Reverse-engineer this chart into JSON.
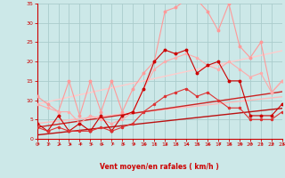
{
  "x": [
    0,
    1,
    2,
    3,
    4,
    5,
    6,
    7,
    8,
    9,
    10,
    11,
    12,
    13,
    14,
    15,
    16,
    17,
    18,
    19,
    20,
    21,
    22,
    23
  ],
  "series": [
    {
      "name": "gust_light",
      "color": "#ff9999",
      "linewidth": 0.8,
      "marker": "o",
      "markersize": 1.8,
      "values": [
        11,
        9,
        7,
        15,
        6,
        15,
        7,
        15,
        7,
        13,
        17,
        20,
        33,
        34,
        36,
        36,
        33,
        28,
        35,
        24,
        21,
        25,
        12,
        15
      ]
    },
    {
      "name": "mean_light",
      "color": "#ffaaaa",
      "linewidth": 0.8,
      "marker": "o",
      "markersize": 1.5,
      "values": [
        9,
        8,
        7,
        7,
        4,
        6,
        5,
        4,
        5,
        7,
        13,
        18,
        20,
        21,
        22,
        21,
        19,
        18,
        20,
        18,
        16,
        17,
        12,
        15
      ]
    },
    {
      "name": "trend_upper",
      "color": "#ffcccc",
      "linewidth": 1.0,
      "marker": null,
      "markersize": 0,
      "values": [
        9,
        9.6,
        10.2,
        10.8,
        11.4,
        12,
        12.6,
        13.2,
        13.8,
        14.4,
        15,
        15.6,
        16.2,
        16.8,
        17.4,
        18,
        18.6,
        19.2,
        19.8,
        20.4,
        21,
        21.6,
        22.2,
        22.8
      ]
    },
    {
      "name": "trend_mid",
      "color": "#ffbbbb",
      "linewidth": 1.0,
      "marker": null,
      "markersize": 0,
      "values": [
        4,
        4.3,
        4.6,
        4.9,
        5.2,
        5.5,
        5.8,
        6.1,
        6.4,
        6.7,
        7.0,
        7.3,
        7.6,
        7.9,
        8.2,
        8.5,
        8.8,
        9.1,
        9.4,
        9.7,
        10.0,
        10.3,
        10.6,
        10.9
      ]
    },
    {
      "name": "gust_dark",
      "color": "#cc0000",
      "linewidth": 0.8,
      "marker": "o",
      "markersize": 1.8,
      "values": [
        4,
        2,
        6,
        2,
        4,
        2,
        6,
        2,
        6,
        7,
        13,
        20,
        23,
        22,
        23,
        17,
        19,
        20,
        15,
        15,
        6,
        6,
        6,
        9
      ]
    },
    {
      "name": "mean_dark",
      "color": "#dd3333",
      "linewidth": 0.8,
      "marker": "o",
      "markersize": 1.5,
      "values": [
        3,
        2,
        3,
        2,
        2,
        2,
        3,
        2,
        3,
        4,
        7,
        9,
        11,
        12,
        13,
        11,
        12,
        10,
        8,
        8,
        5,
        5,
        5,
        7
      ]
    },
    {
      "name": "trend_dark_upper",
      "color": "#cc2222",
      "linewidth": 1.0,
      "marker": null,
      "markersize": 0,
      "values": [
        3,
        3.4,
        3.8,
        4.2,
        4.6,
        5.0,
        5.4,
        5.8,
        6.2,
        6.6,
        7.0,
        7.4,
        7.8,
        8.2,
        8.6,
        9.0,
        9.4,
        9.8,
        10.2,
        10.6,
        11.0,
        11.4,
        11.8,
        12.2
      ]
    },
    {
      "name": "trend_dark_low",
      "color": "#bb1111",
      "linewidth": 1.0,
      "marker": null,
      "markersize": 0,
      "values": [
        1,
        1.3,
        1.6,
        1.9,
        2.2,
        2.5,
        2.8,
        3.1,
        3.4,
        3.7,
        4.0,
        4.3,
        4.6,
        4.9,
        5.2,
        5.5,
        5.8,
        6.1,
        6.4,
        6.7,
        7.0,
        7.3,
        7.6,
        7.9
      ]
    }
  ],
  "xlabel": "Vent moyen/en rafales ( km/h )",
  "xlim": [
    0,
    23
  ],
  "ylim": [
    0,
    35
  ],
  "yticks": [
    0,
    5,
    10,
    15,
    20,
    25,
    30,
    35
  ],
  "xticks": [
    0,
    1,
    2,
    3,
    4,
    5,
    6,
    7,
    8,
    9,
    10,
    11,
    12,
    13,
    14,
    15,
    16,
    17,
    18,
    19,
    20,
    21,
    22,
    23
  ],
  "bg_color": "#cce8e8",
  "grid_color": "#aacccc",
  "tick_color": "#cc0000",
  "label_color": "#cc0000"
}
